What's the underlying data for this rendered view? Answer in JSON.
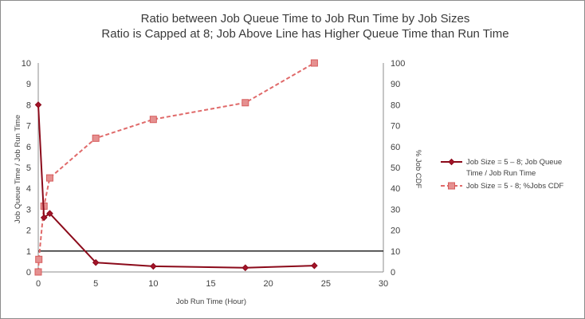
{
  "chart_data": {
    "type": "line",
    "title": "Ratio between Job Queue Time to Job Run Time by Job Sizes",
    "subtitle": "Ratio is Capped at 8; Job Above Line has Higher Queue Time than Run Time",
    "xlabel": "Job Run Time (Hour)",
    "ylabel": "Job Queue Time / Job Run Time",
    "y2label": "% Job CDF",
    "xlim": [
      0,
      30
    ],
    "ylim": [
      0,
      10
    ],
    "y2lim": [
      0,
      100
    ],
    "x_ticks": [
      "0",
      "5",
      "10",
      "15",
      "20",
      "25",
      "30"
    ],
    "y_ticks": [
      "0",
      "1",
      "2",
      "3",
      "4",
      "5",
      "6",
      "7",
      "8",
      "9",
      "10"
    ],
    "y2_ticks": [
      "0",
      "10",
      "20",
      "30",
      "40",
      "50",
      "60",
      "70",
      "80",
      "90",
      "100"
    ],
    "legend_position": "right",
    "series": [
      {
        "name": "Job Size = 5 – 8; Job Queue Time / Job Run Time",
        "axis": "left",
        "style": "solid",
        "marker": "diamond",
        "color": "#8b0a1a",
        "points": [
          [
            0,
            8
          ],
          [
            0.5,
            2.6
          ],
          [
            1,
            2.8
          ],
          [
            5,
            0.45
          ],
          [
            10,
            0.27
          ],
          [
            18,
            0.2
          ],
          [
            24,
            0.3
          ]
        ]
      },
      {
        "name": "Job Size = 5 - 8; %Jobs CDF",
        "axis": "right",
        "style": "dashed",
        "marker": "square",
        "color": "#e06a6a",
        "points": [
          [
            0,
            0
          ],
          [
            0.05,
            6
          ],
          [
            0.5,
            31.5
          ],
          [
            1,
            45
          ],
          [
            5,
            64
          ],
          [
            10,
            73
          ],
          [
            18,
            81
          ],
          [
            24,
            100
          ]
        ]
      },
      {
        "name": "",
        "axis": "left",
        "style": "reference-line",
        "color": "#262626",
        "points": [
          [
            0,
            1
          ],
          [
            30,
            1
          ]
        ]
      }
    ]
  }
}
